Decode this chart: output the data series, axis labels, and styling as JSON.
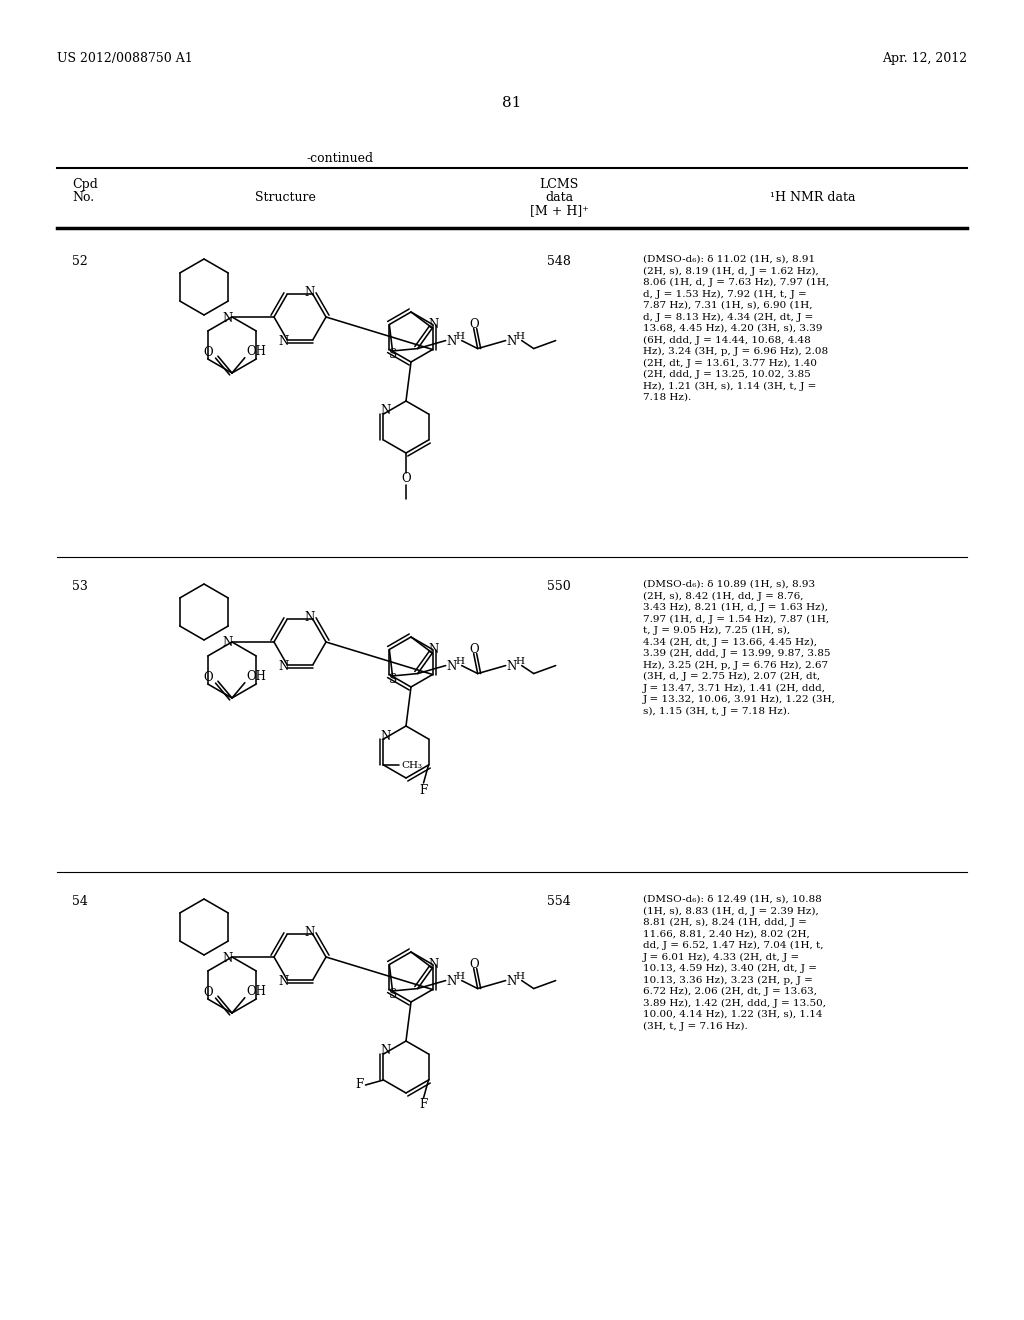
{
  "page_header_left": "US 2012/0088750 A1",
  "page_header_right": "Apr. 12, 2012",
  "page_number": "81",
  "continued_label": "-continued",
  "rows": [
    {
      "cpd_no": "52",
      "lcms": "548",
      "nmr_lines": [
        "(DMSO-d₆): δ 11.02 (1H, s), 8.91",
        "(2H, s), 8.19 (1H, d, J = 1.62 Hz),",
        "8.06 (1H, d, J = 7.63 Hz), 7.97 (1H,",
        "d, J = 1.53 Hz), 7.92 (1H, t, J =",
        "7.87 Hz), 7.31 (1H, s), 6.90 (1H,",
        "d, J = 8.13 Hz), 4.34 (2H, dt, J =",
        "13.68, 4.45 Hz), 4.20 (3H, s), 3.39",
        "(6H, ddd, J = 14.44, 10.68, 4.48",
        "Hz), 3.24 (3H, p, J = 6.96 Hz), 2.08",
        "(2H, dt, J = 13.61, 3.77 Hz), 1.40",
        "(2H, ddd, J = 13.25, 10.02, 3.85",
        "Hz), 1.21 (3H, s), 1.14 (3H, t, J =",
        "7.18 Hz)."
      ]
    },
    {
      "cpd_no": "53",
      "lcms": "550",
      "nmr_lines": [
        "(DMSO-d₆): δ 10.89 (1H, s), 8.93",
        "(2H, s), 8.42 (1H, dd, J = 8.76,",
        "3.43 Hz), 8.21 (1H, d, J = 1.63 Hz),",
        "7.97 (1H, d, J = 1.54 Hz), 7.87 (1H,",
        "t, J = 9.05 Hz), 7.25 (1H, s),",
        "4.34 (2H, dt, J = 13.66, 4.45 Hz),",
        "3.39 (2H, ddd, J = 13.99, 9.87, 3.85",
        "Hz), 3.25 (2H, p, J = 6.76 Hz), 2.67",
        "(3H, d, J = 2.75 Hz), 2.07 (2H, dt,",
        "J = 13.47, 3.71 Hz), 1.41 (2H, ddd,",
        "J = 13.32, 10.06, 3.91 Hz), 1.22 (3H,",
        "s), 1.15 (3H, t, J = 7.18 Hz)."
      ]
    },
    {
      "cpd_no": "54",
      "lcms": "554",
      "nmr_lines": [
        "(DMSO-d₆): δ 12.49 (1H, s), 10.88",
        "(1H, s), 8.83 (1H, d, J = 2.39 Hz),",
        "8.81 (2H, s), 8.24 (1H, ddd, J =",
        "11.66, 8.81, 2.40 Hz), 8.02 (2H,",
        "dd, J = 6.52, 1.47 Hz), 7.04 (1H, t,",
        "J = 6.01 Hz), 4.33 (2H, dt, J =",
        "10.13, 4.59 Hz), 3.40 (2H, dt, J =",
        "10.13, 3.36 Hz), 3.23 (2H, p, J =",
        "6.72 Hz), 2.06 (2H, dt, J = 13.63,",
        "3.89 Hz), 1.42 (2H, ddd, J = 13.50,",
        "10.00, 4.14 Hz), 1.22 (3H, s), 1.14",
        "(3H, t, J = 7.16 Hz)."
      ]
    }
  ],
  "background_color": "#ffffff",
  "text_color": "#000000",
  "line_color": "#000000"
}
